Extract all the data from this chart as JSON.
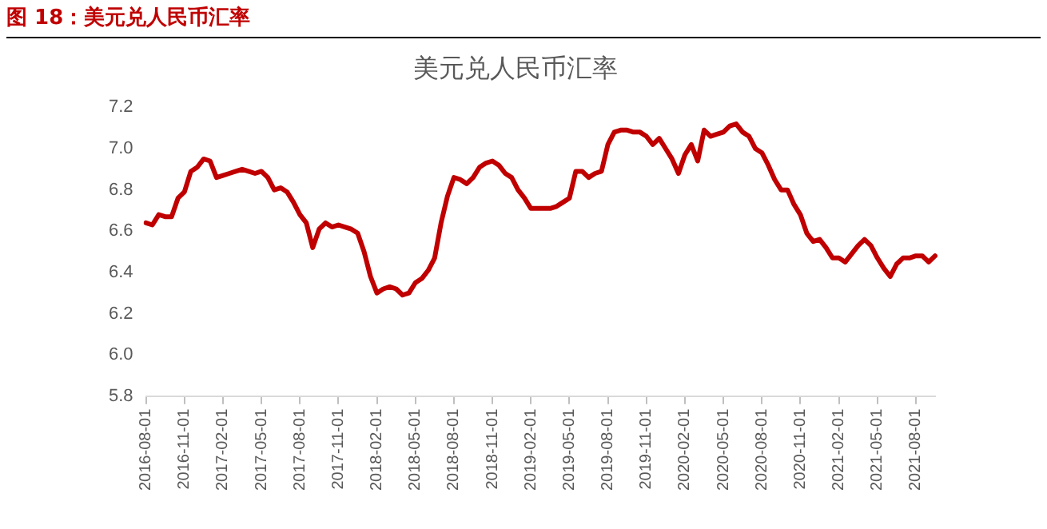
{
  "chart_data": {
    "type": "line",
    "title": "美元兑人民币汇率",
    "annotations": [
      "图 18：美元兑人民币汇率"
    ],
    "categories": [
      "2016-08-01",
      null,
      null,
      null,
      null,
      null,
      "2016-11-01",
      null,
      null,
      null,
      null,
      null,
      "2017-02-01",
      null,
      null,
      null,
      null,
      null,
      "2017-05-01",
      null,
      null,
      null,
      null,
      null,
      "2017-08-01",
      null,
      null,
      null,
      null,
      null,
      "2017-11-01",
      null,
      null,
      null,
      null,
      null,
      "2018-02-01",
      null,
      null,
      null,
      null,
      null,
      "2018-05-01",
      null,
      null,
      null,
      null,
      null,
      "2018-08-01",
      null,
      null,
      null,
      null,
      null,
      "2018-11-01",
      null,
      null,
      null,
      null,
      null,
      "2019-02-01",
      null,
      null,
      null,
      null,
      null,
      "2019-05-01",
      null,
      null,
      null,
      null,
      null,
      "2019-08-01",
      null,
      null,
      null,
      null,
      null,
      "2019-11-01",
      null,
      null,
      null,
      null,
      null,
      "2020-02-01",
      null,
      null,
      null,
      null,
      null,
      "2020-05-01",
      null,
      null,
      null,
      null,
      null,
      "2020-08-01",
      null,
      null,
      null,
      null,
      null,
      "2020-11-01",
      null,
      null,
      null,
      null,
      null,
      "2021-02-01",
      null,
      null,
      null,
      null,
      null,
      "2021-05-01",
      null,
      null,
      null,
      null,
      null,
      "2021-08-01",
      null,
      null,
      null
    ],
    "series": [
      {
        "color": "#c00000",
        "values": [
          6.64,
          6.63,
          6.68,
          6.67,
          6.67,
          6.76,
          6.79,
          6.89,
          6.91,
          6.95,
          6.94,
          6.86,
          6.87,
          6.88,
          6.89,
          6.9,
          6.89,
          6.88,
          6.89,
          6.86,
          6.8,
          6.81,
          6.79,
          6.74,
          6.68,
          6.64,
          6.52,
          6.61,
          6.64,
          6.62,
          6.63,
          6.62,
          6.61,
          6.59,
          6.5,
          6.38,
          6.3,
          6.32,
          6.33,
          6.32,
          6.29,
          6.3,
          6.35,
          6.37,
          6.41,
          6.47,
          6.64,
          6.77,
          6.86,
          6.85,
          6.83,
          6.86,
          6.91,
          6.93,
          6.94,
          6.92,
          6.88,
          6.86,
          6.8,
          6.76,
          6.71,
          6.71,
          6.71,
          6.71,
          6.72,
          6.74,
          6.76,
          6.89,
          6.89,
          6.86,
          6.88,
          6.89,
          7.02,
          7.08,
          7.09,
          7.09,
          7.08,
          7.08,
          7.06,
          7.02,
          7.05,
          7.0,
          6.95,
          6.88,
          6.97,
          7.02,
          6.94,
          7.09,
          7.06,
          7.07,
          7.08,
          7.11,
          7.12,
          7.08,
          7.06,
          7.0,
          6.98,
          6.92,
          6.85,
          6.8,
          6.8,
          6.73,
          6.68,
          6.59,
          6.55,
          6.56,
          6.52,
          6.47,
          6.47,
          6.45,
          6.49,
          6.53,
          6.56,
          6.53,
          6.47,
          6.42,
          6.38,
          6.44,
          6.47,
          6.47,
          6.48,
          6.48,
          6.45,
          6.48
        ]
      }
    ],
    "ylim": [
      5.8,
      7.2
    ],
    "yticks": [
      5.8,
      {
        "value": 6,
        "label": "6.0"
      },
      6.2,
      6.4,
      6.6,
      6.8,
      {
        "value": 7,
        "label": "7.0"
      },
      7.2
    ],
    "grid": false,
    "legend": false,
    "marker": "none",
    "line_style": "solid"
  }
}
